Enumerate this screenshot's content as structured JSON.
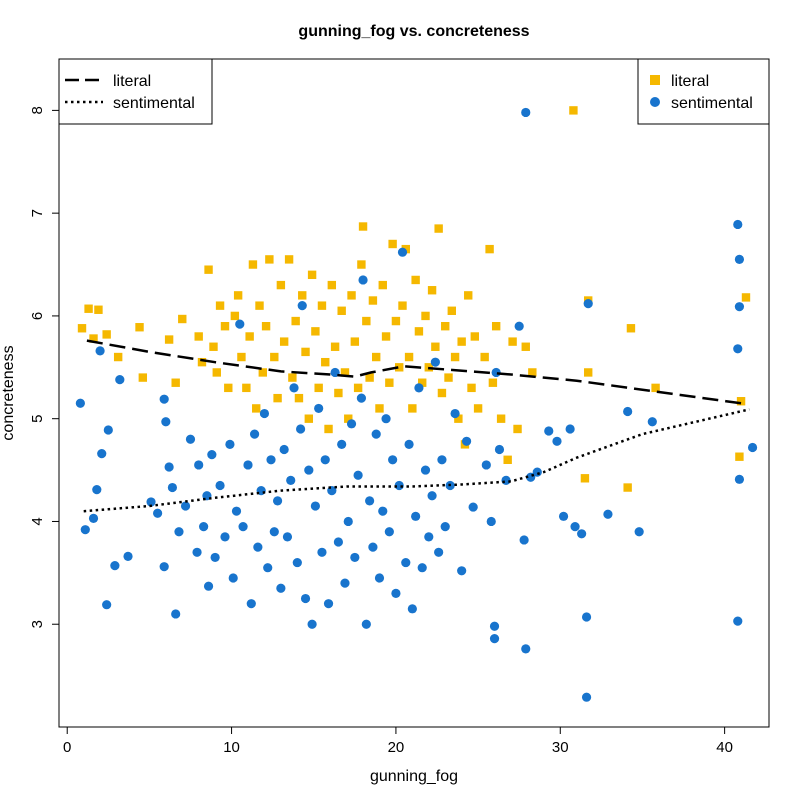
{
  "chart_data": {
    "type": "scatter",
    "title": "gunning_fog vs. concreteness",
    "xlabel": "gunning_fog",
    "ylabel": "concreteness",
    "xlim": [
      -0.5,
      42.7
    ],
    "ylim": [
      2.0,
      8.5
    ],
    "xticks": [
      0,
      10,
      20,
      30,
      40
    ],
    "yticks": [
      3,
      4,
      5,
      6,
      7,
      8
    ],
    "grid": false,
    "colors": {
      "literal": "#F5B800",
      "sentimental": "#1874CD"
    },
    "legends": {
      "lines": {
        "position": "top-left",
        "entries": [
          {
            "label": "literal",
            "style": "dashed"
          },
          {
            "label": "sentimental",
            "style": "dotted"
          }
        ]
      },
      "points": {
        "position": "top-right",
        "entries": [
          {
            "label": "literal",
            "shape": "square"
          },
          {
            "label": "sentimental",
            "shape": "circle"
          }
        ]
      }
    },
    "series": [
      {
        "name": "literal",
        "marker": "square",
        "points": [
          [
            0.9,
            5.88
          ],
          [
            1.3,
            6.07
          ],
          [
            1.9,
            6.06
          ],
          [
            1.6,
            5.78
          ],
          [
            2.4,
            5.82
          ],
          [
            3.1,
            5.6
          ],
          [
            4.4,
            5.89
          ],
          [
            4.6,
            5.4
          ],
          [
            6.2,
            5.77
          ],
          [
            6.6,
            5.35
          ],
          [
            7.0,
            5.97
          ],
          [
            8.0,
            5.8
          ],
          [
            8.2,
            5.55
          ],
          [
            8.6,
            6.45
          ],
          [
            8.9,
            5.7
          ],
          [
            9.3,
            6.1
          ],
          [
            9.1,
            5.45
          ],
          [
            9.6,
            5.9
          ],
          [
            9.8,
            5.3
          ],
          [
            10.2,
            6.0
          ],
          [
            10.4,
            6.2
          ],
          [
            10.6,
            5.6
          ],
          [
            10.9,
            5.3
          ],
          [
            11.1,
            5.8
          ],
          [
            11.3,
            6.5
          ],
          [
            11.5,
            5.1
          ],
          [
            11.7,
            6.1
          ],
          [
            11.9,
            5.45
          ],
          [
            12.1,
            5.9
          ],
          [
            12.3,
            6.55
          ],
          [
            12.6,
            5.6
          ],
          [
            12.8,
            5.2
          ],
          [
            13.0,
            6.3
          ],
          [
            13.2,
            5.75
          ],
          [
            13.5,
            6.55
          ],
          [
            13.7,
            5.4
          ],
          [
            13.9,
            5.95
          ],
          [
            14.1,
            5.2
          ],
          [
            14.3,
            6.2
          ],
          [
            14.5,
            5.65
          ],
          [
            14.7,
            5.0
          ],
          [
            14.9,
            6.4
          ],
          [
            15.1,
            5.85
          ],
          [
            15.3,
            5.3
          ],
          [
            15.5,
            6.1
          ],
          [
            15.7,
            5.55
          ],
          [
            15.9,
            4.9
          ],
          [
            16.1,
            6.3
          ],
          [
            16.3,
            5.7
          ],
          [
            16.5,
            5.25
          ],
          [
            16.7,
            6.05
          ],
          [
            16.9,
            5.45
          ],
          [
            17.1,
            5.0
          ],
          [
            17.3,
            6.2
          ],
          [
            17.5,
            5.75
          ],
          [
            17.7,
            5.3
          ],
          [
            17.9,
            6.5
          ],
          [
            18.0,
            6.87
          ],
          [
            18.2,
            5.95
          ],
          [
            18.4,
            5.4
          ],
          [
            18.6,
            6.15
          ],
          [
            18.8,
            5.6
          ],
          [
            19.0,
            5.1
          ],
          [
            19.2,
            6.3
          ],
          [
            19.4,
            5.8
          ],
          [
            19.6,
            5.35
          ],
          [
            19.8,
            6.7
          ],
          [
            20.0,
            5.95
          ],
          [
            20.2,
            5.5
          ],
          [
            20.4,
            6.1
          ],
          [
            20.6,
            6.65
          ],
          [
            20.8,
            5.6
          ],
          [
            21.0,
            5.1
          ],
          [
            21.2,
            6.35
          ],
          [
            21.4,
            5.85
          ],
          [
            21.6,
            5.35
          ],
          [
            21.8,
            6.0
          ],
          [
            22.0,
            5.5
          ],
          [
            22.2,
            6.25
          ],
          [
            22.4,
            5.7
          ],
          [
            22.6,
            6.85
          ],
          [
            22.8,
            5.25
          ],
          [
            23.0,
            5.9
          ],
          [
            23.2,
            5.4
          ],
          [
            23.4,
            6.05
          ],
          [
            23.6,
            5.6
          ],
          [
            23.8,
            5.0
          ],
          [
            24.0,
            5.75
          ],
          [
            24.2,
            4.75
          ],
          [
            24.4,
            6.2
          ],
          [
            24.6,
            5.3
          ],
          [
            24.8,
            5.8
          ],
          [
            25.0,
            5.1
          ],
          [
            25.4,
            5.6
          ],
          [
            25.7,
            6.65
          ],
          [
            25.9,
            5.35
          ],
          [
            26.1,
            5.9
          ],
          [
            26.4,
            5.0
          ],
          [
            26.8,
            4.6
          ],
          [
            27.1,
            5.75
          ],
          [
            27.4,
            4.9
          ],
          [
            27.9,
            5.7
          ],
          [
            28.3,
            5.45
          ],
          [
            30.8,
            8.0
          ],
          [
            31.5,
            4.42
          ],
          [
            31.7,
            5.45
          ],
          [
            31.7,
            6.15
          ],
          [
            34.3,
            5.88
          ],
          [
            34.1,
            4.33
          ],
          [
            35.8,
            5.3
          ],
          [
            40.9,
            4.63
          ],
          [
            41.3,
            6.18
          ],
          [
            41.0,
            5.17
          ]
        ]
      },
      {
        "name": "sentimental",
        "marker": "circle",
        "points": [
          [
            0.8,
            5.15
          ],
          [
            1.1,
            3.92
          ],
          [
            1.6,
            4.03
          ],
          [
            1.8,
            4.31
          ],
          [
            2.0,
            5.66
          ],
          [
            2.1,
            4.66
          ],
          [
            2.4,
            3.19
          ],
          [
            2.5,
            4.89
          ],
          [
            2.9,
            3.57
          ],
          [
            3.2,
            5.38
          ],
          [
            3.7,
            3.66
          ],
          [
            5.1,
            4.19
          ],
          [
            5.5,
            4.08
          ],
          [
            5.9,
            5.19
          ],
          [
            5.9,
            3.56
          ],
          [
            6.0,
            4.97
          ],
          [
            6.2,
            4.53
          ],
          [
            6.4,
            4.33
          ],
          [
            6.6,
            3.1
          ],
          [
            6.8,
            3.9
          ],
          [
            7.2,
            4.15
          ],
          [
            7.5,
            4.8
          ],
          [
            7.9,
            3.7
          ],
          [
            8.0,
            4.55
          ],
          [
            8.3,
            3.95
          ],
          [
            8.5,
            4.25
          ],
          [
            8.6,
            3.37
          ],
          [
            8.8,
            4.65
          ],
          [
            9.0,
            3.65
          ],
          [
            9.3,
            4.35
          ],
          [
            9.6,
            3.85
          ],
          [
            9.9,
            4.75
          ],
          [
            10.1,
            3.45
          ],
          [
            10.3,
            4.1
          ],
          [
            10.5,
            5.92
          ],
          [
            10.7,
            3.95
          ],
          [
            11.0,
            4.55
          ],
          [
            11.2,
            3.2
          ],
          [
            11.4,
            4.85
          ],
          [
            11.6,
            3.75
          ],
          [
            11.8,
            4.3
          ],
          [
            12.0,
            5.05
          ],
          [
            12.2,
            3.55
          ],
          [
            12.4,
            4.6
          ],
          [
            12.6,
            3.9
          ],
          [
            12.8,
            4.2
          ],
          [
            13.0,
            3.35
          ],
          [
            13.2,
            4.7
          ],
          [
            13.4,
            3.85
          ],
          [
            13.6,
            4.4
          ],
          [
            13.8,
            5.3
          ],
          [
            14.0,
            3.6
          ],
          [
            14.2,
            4.9
          ],
          [
            14.3,
            6.1
          ],
          [
            14.5,
            3.25
          ],
          [
            14.7,
            4.5
          ],
          [
            14.9,
            3.0
          ],
          [
            15.1,
            4.15
          ],
          [
            15.3,
            5.1
          ],
          [
            15.5,
            3.7
          ],
          [
            15.7,
            4.6
          ],
          [
            15.9,
            3.2
          ],
          [
            16.1,
            4.3
          ],
          [
            16.3,
            5.45
          ],
          [
            16.5,
            3.8
          ],
          [
            16.7,
            4.75
          ],
          [
            16.9,
            3.4
          ],
          [
            17.1,
            4.0
          ],
          [
            17.3,
            4.95
          ],
          [
            17.5,
            3.65
          ],
          [
            17.7,
            4.45
          ],
          [
            17.9,
            5.2
          ],
          [
            18.0,
            6.35
          ],
          [
            18.2,
            3.0
          ],
          [
            18.4,
            4.2
          ],
          [
            18.6,
            3.75
          ],
          [
            18.8,
            4.85
          ],
          [
            19.0,
            3.45
          ],
          [
            19.2,
            4.1
          ],
          [
            19.4,
            5.0
          ],
          [
            19.6,
            3.9
          ],
          [
            19.8,
            4.6
          ],
          [
            20.0,
            3.3
          ],
          [
            20.2,
            4.35
          ],
          [
            20.4,
            6.62
          ],
          [
            20.6,
            3.6
          ],
          [
            20.8,
            4.75
          ],
          [
            21.0,
            3.15
          ],
          [
            21.2,
            4.05
          ],
          [
            21.4,
            5.3
          ],
          [
            21.6,
            3.55
          ],
          [
            21.8,
            4.5
          ],
          [
            22.0,
            3.85
          ],
          [
            22.2,
            4.25
          ],
          [
            22.4,
            5.55
          ],
          [
            22.6,
            3.7
          ],
          [
            22.8,
            4.6
          ],
          [
            23.0,
            3.95
          ],
          [
            23.3,
            4.35
          ],
          [
            23.6,
            5.05
          ],
          [
            24.0,
            3.52
          ],
          [
            24.3,
            4.78
          ],
          [
            24.7,
            4.14
          ],
          [
            25.5,
            4.55
          ],
          [
            25.8,
            4.0
          ],
          [
            26.0,
            2.98
          ],
          [
            26.0,
            2.86
          ],
          [
            26.1,
            5.45
          ],
          [
            26.3,
            4.7
          ],
          [
            26.7,
            4.4
          ],
          [
            27.5,
            5.9
          ],
          [
            27.8,
            3.82
          ],
          [
            27.9,
            2.76
          ],
          [
            27.9,
            7.98
          ],
          [
            28.2,
            4.43
          ],
          [
            28.6,
            4.48
          ],
          [
            29.3,
            4.88
          ],
          [
            29.8,
            4.78
          ],
          [
            30.2,
            4.05
          ],
          [
            30.6,
            4.9
          ],
          [
            30.9,
            3.95
          ],
          [
            31.3,
            3.88
          ],
          [
            31.6,
            3.07
          ],
          [
            31.6,
            2.29
          ],
          [
            31.7,
            6.12
          ],
          [
            32.9,
            4.07
          ],
          [
            34.1,
            5.07
          ],
          [
            34.8,
            3.9
          ],
          [
            35.6,
            4.97
          ],
          [
            40.8,
            6.89
          ],
          [
            40.9,
            6.55
          ],
          [
            40.9,
            6.09
          ],
          [
            40.8,
            5.68
          ],
          [
            40.9,
            4.41
          ],
          [
            40.8,
            3.03
          ],
          [
            41.7,
            4.72
          ]
        ]
      }
    ],
    "trend_lines": [
      {
        "name": "literal",
        "style": "dashed",
        "points": [
          [
            1.2,
            5.76
          ],
          [
            5.0,
            5.65
          ],
          [
            9.0,
            5.55
          ],
          [
            13.0,
            5.46
          ],
          [
            16.0,
            5.43
          ],
          [
            17.5,
            5.41
          ],
          [
            18.5,
            5.45
          ],
          [
            20.5,
            5.51
          ],
          [
            23.0,
            5.48
          ],
          [
            27.0,
            5.43
          ],
          [
            31.0,
            5.37
          ],
          [
            36.0,
            5.26
          ],
          [
            41.0,
            5.15
          ]
        ]
      },
      {
        "name": "sentimental",
        "style": "dotted",
        "points": [
          [
            1.0,
            4.1
          ],
          [
            5.0,
            4.15
          ],
          [
            9.0,
            4.23
          ],
          [
            13.0,
            4.3
          ],
          [
            17.0,
            4.34
          ],
          [
            21.0,
            4.34
          ],
          [
            24.0,
            4.36
          ],
          [
            27.0,
            4.39
          ],
          [
            29.0,
            4.48
          ],
          [
            31.0,
            4.62
          ],
          [
            35.0,
            4.85
          ],
          [
            41.5,
            5.09
          ]
        ]
      }
    ]
  }
}
